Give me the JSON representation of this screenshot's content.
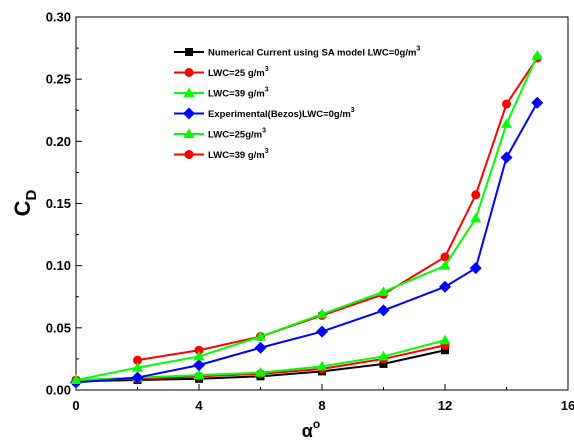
{
  "chart_data": {
    "type": "line",
    "xlabel": "α",
    "xlabel_sup": "o",
    "ylabel": "C",
    "ylabel_sub": "D",
    "xlim": [
      0,
      16
    ],
    "ylim": [
      0,
      0.3
    ],
    "x_ticks": [
      "0",
      "4",
      "8",
      "12",
      "16"
    ],
    "y_ticks": [
      "0.00",
      "0.05",
      "0.10",
      "0.15",
      "0.20",
      "0.25",
      "0.30"
    ],
    "grid": false,
    "legend_position": "top-right",
    "series": [
      {
        "name": "Numerical Current using SA  model LWC=0g/m",
        "name_sup": "3",
        "color": "#000000",
        "marker": "square",
        "x": [
          0,
          2,
          4,
          6,
          8,
          10,
          12
        ],
        "y": [
          0.007,
          0.008,
          0.009,
          0.011,
          0.015,
          0.021,
          0.032
        ]
      },
      {
        "name": "LWC=25 g/m",
        "name_sup": "3",
        "color": "#ff0000",
        "marker": "circle",
        "x": [
          0,
          2,
          4,
          6,
          8,
          10,
          12
        ],
        "y": [
          0.008,
          0.009,
          0.011,
          0.013,
          0.017,
          0.025,
          0.036
        ]
      },
      {
        "name": "LWC=39 g/m",
        "name_sup": "3",
        "color": "#00ff00",
        "marker": "triangle",
        "x": [
          0,
          2,
          4,
          6,
          8,
          10,
          12
        ],
        "y": [
          0.008,
          0.01,
          0.012,
          0.014,
          0.019,
          0.027,
          0.04
        ]
      },
      {
        "name": "Experimental(Bezos)LWC=0g/m",
        "name_sup": "3",
        "color": "#0000ff",
        "marker": "diamond",
        "x": [
          0,
          2,
          4,
          6,
          8,
          10,
          12,
          13,
          14,
          15
        ],
        "y": [
          0.006,
          0.01,
          0.02,
          0.034,
          0.047,
          0.064,
          0.083,
          0.098,
          0.187,
          0.231
        ]
      },
      {
        "name": "LWC=25g/m",
        "name_sup": "3",
        "color": "#00ff00",
        "marker": "triangle",
        "x": [
          0,
          2,
          4,
          6,
          8,
          10,
          12,
          13,
          14,
          15
        ],
        "y": [
          0.008,
          0.018,
          0.027,
          0.043,
          0.061,
          0.079,
          0.1,
          0.138,
          0.214,
          0.269
        ]
      },
      {
        "name": "LWC=39 g/m",
        "name_sup": "3",
        "color": "#ff0000",
        "marker": "circle",
        "x": [
          2,
          4,
          6,
          8,
          10,
          12,
          13,
          14,
          15
        ],
        "y": [
          0.024,
          0.032,
          0.043,
          0.06,
          0.077,
          0.107,
          0.157,
          0.23,
          0.267
        ]
      }
    ]
  }
}
